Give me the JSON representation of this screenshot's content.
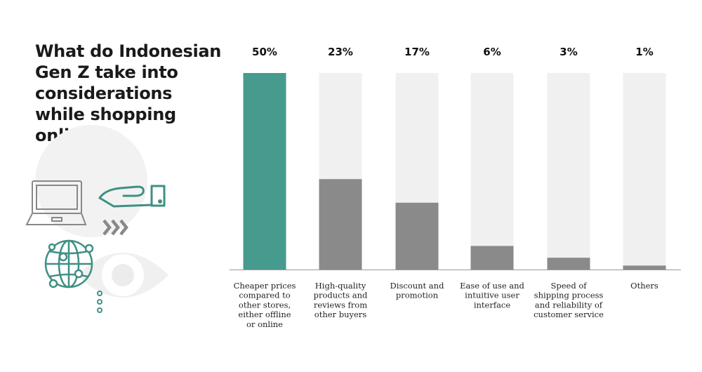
{
  "colors": {
    "highlight": "#479a8e",
    "bar": "#8a8a8a",
    "track": "#f0f0f0",
    "axis": "#999999",
    "illustration": "#3f8f84",
    "illustration_gray": "#888888",
    "backdrop": "#f2f2f2"
  },
  "illustration": {
    "icons": [
      "laptop-icon",
      "hand-card-icon",
      "chevrons-right-icon",
      "globe-network-icon",
      "eye-icon",
      "dots-icon"
    ]
  },
  "chart_data": {
    "type": "bar",
    "title": "What do Indonesian Gen Z take into considerations while shopping online?",
    "title_lines": [
      "What do Indonesian",
      "Gen Z take into",
      "considerations",
      "while shopping",
      "online?"
    ],
    "categories": [
      "Cheaper prices compared to other stores, either offline or online",
      "High-quality products and reviews from other buyers",
      "Discount and promotion",
      "Ease of use and intuitive user interface",
      "Speed of shipping process and reliability of customer service",
      "Others"
    ],
    "category_lines": [
      [
        "Cheaper prices",
        "compared to",
        "other stores,",
        "either offline",
        "or online"
      ],
      [
        "High-quality",
        "products and",
        "reviews from",
        "other buyers"
      ],
      [
        "Discount and",
        "promotion"
      ],
      [
        "Ease of use and",
        "intuitive user",
        "interface"
      ],
      [
        "Speed of",
        "shipping process",
        "and reliability of",
        "customer service"
      ],
      [
        "Others"
      ]
    ],
    "values": [
      50,
      23,
      17,
      6,
      3,
      1
    ],
    "value_labels": [
      "50%",
      "23%",
      "17%",
      "6%",
      "3%",
      "1%"
    ],
    "ylim": [
      0,
      50
    ],
    "highlight_index": 0,
    "grid": false,
    "legend": "none"
  }
}
